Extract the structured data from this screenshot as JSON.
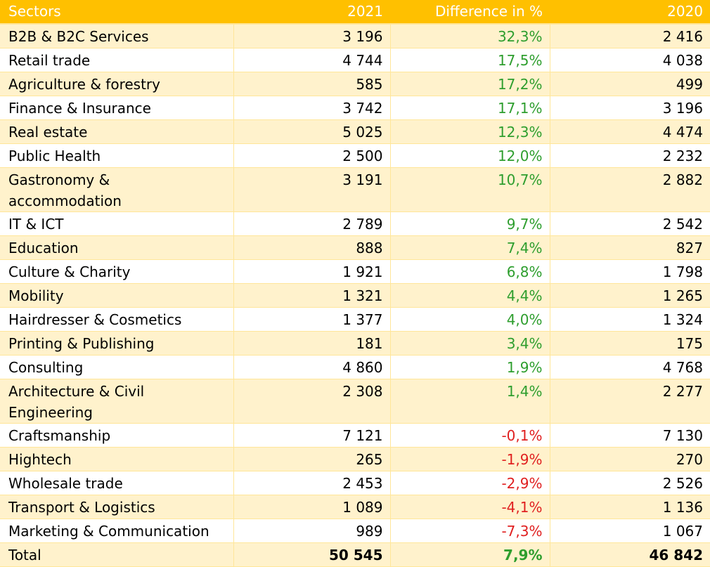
{
  "header": {
    "sectors": "Sectors",
    "y2021": "2021",
    "diff": "Difference in %",
    "y2020": "2020"
  },
  "rows": [
    {
      "sector": "B2B & B2C Services",
      "v2021": "3 196",
      "diff": "32,3%",
      "v2020": "2 416"
    },
    {
      "sector": "Retail trade",
      "v2021": "4 744",
      "diff": "17,5%",
      "v2020": "4 038"
    },
    {
      "sector": "Agriculture & forestry",
      "v2021": "585",
      "diff": "17,2%",
      "v2020": "499"
    },
    {
      "sector": "Finance & Insurance",
      "v2021": "3 742",
      "diff": "17,1%",
      "v2020": "3 196"
    },
    {
      "sector": "Real estate",
      "v2021": "5 025",
      "diff": "12,3%",
      "v2020": "4 474"
    },
    {
      "sector": "Public Health",
      "v2021": "2 500",
      "diff": "12,0%",
      "v2020": "2 232"
    },
    {
      "sector": "Gastronomy & accommodation",
      "v2021": "3 191",
      "diff": "10,7%",
      "v2020": "2 882"
    },
    {
      "sector": "IT & ICT",
      "v2021": "2 789",
      "diff": "9,7%",
      "v2020": "2 542"
    },
    {
      "sector": "Education",
      "v2021": "888",
      "diff": "7,4%",
      "v2020": "827"
    },
    {
      "sector": "Culture & Charity",
      "v2021": "1 921",
      "diff": "6,8%",
      "v2020": "1 798"
    },
    {
      "sector": "Mobility",
      "v2021": "1 321",
      "diff": "4,4%",
      "v2020": "1 265"
    },
    {
      "sector": "Hairdresser & Cosmetics",
      "v2021": "1 377",
      "diff": "4,0%",
      "v2020": "1 324"
    },
    {
      "sector": "Printing & Publishing",
      "v2021": "181",
      "diff": "3,4%",
      "v2020": "175"
    },
    {
      "sector": "Consulting",
      "v2021": "4 860",
      "diff": "1,9%",
      "v2020": "4 768"
    },
    {
      "sector": "Architecture & Civil Engineering",
      "v2021": "2 308",
      "diff": "1,4%",
      "v2020": "2 277"
    },
    {
      "sector": "Craftsmanship",
      "v2021": "7 121",
      "diff": "-0,1%",
      "v2020": "7 130"
    },
    {
      "sector": "Hightech",
      "v2021": "265",
      "diff": "-1,9%",
      "v2020": "270"
    },
    {
      "sector": "Wholesale trade",
      "v2021": "2 453",
      "diff": "-2,9%",
      "v2020": "2 526"
    },
    {
      "sector": "Transport & Logistics",
      "v2021": "1 089",
      "diff": "-4,1%",
      "v2020": "1 136"
    },
    {
      "sector": "Marketing & Communication",
      "v2021": "989",
      "diff": "-7,3%",
      "v2020": "1 067"
    }
  ],
  "total": {
    "sector": "Total",
    "v2021": "50 545",
    "diff": "7,9%",
    "v2020": "46 842"
  },
  "colors": {
    "header_bg": "#ffc000",
    "band_bg": "#fff2cc",
    "positive": "#2e9e2e",
    "negative": "#e02020"
  }
}
